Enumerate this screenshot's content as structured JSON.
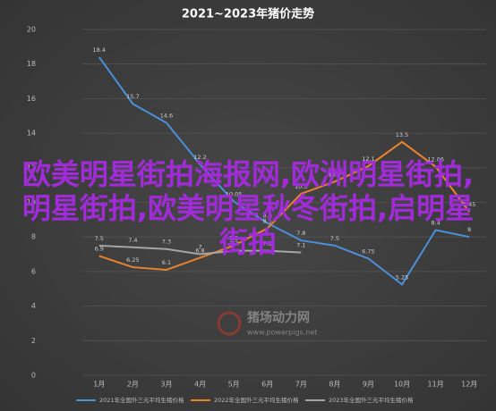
{
  "chart_data": {
    "type": "line",
    "title": "2021~2023年猪价走势",
    "categories": [
      "1月",
      "2月",
      "3月",
      "4月",
      "5月",
      "6月",
      "7月",
      "8月",
      "9月",
      "10月",
      "11月",
      "12月"
    ],
    "series": [
      {
        "name": "2021年全国外三元平均生猪价格",
        "color": "#4a8fd8",
        "values": [
          18.4,
          15.7,
          14.6,
          12.2,
          10.05,
          8.8,
          7.8,
          7.5,
          6.75,
          5.25,
          8.4,
          8.0
        ]
      },
      {
        "name": "2022年全国外三元平均生猪价格",
        "color": "#e8822c",
        "values": [
          6.9,
          6.25,
          6.1,
          6.8,
          7.5,
          8.5,
          10.5,
          11.2,
          12.1,
          13.5,
          12.06,
          9.45
        ]
      },
      {
        "name": "2023年全国外三元平均生猪价格",
        "color": "#a5a5a5",
        "values": [
          7.5,
          7.4,
          7.3,
          7.0,
          7.2,
          7.2,
          7.1,
          null,
          null,
          null,
          null,
          null
        ]
      }
    ],
    "ylim": [
      0,
      20
    ],
    "yticks": [
      0,
      2,
      4,
      6,
      8,
      10,
      12,
      14,
      16,
      18,
      20
    ],
    "grid": true
  },
  "overlay": "欧美明星街拍海报网,欧洲明星街拍,明星街拍,欧美明星秋冬街拍,启明星街拍",
  "watermark": {
    "name": "猪场动力网",
    "url": "www.powerpigs.net"
  }
}
